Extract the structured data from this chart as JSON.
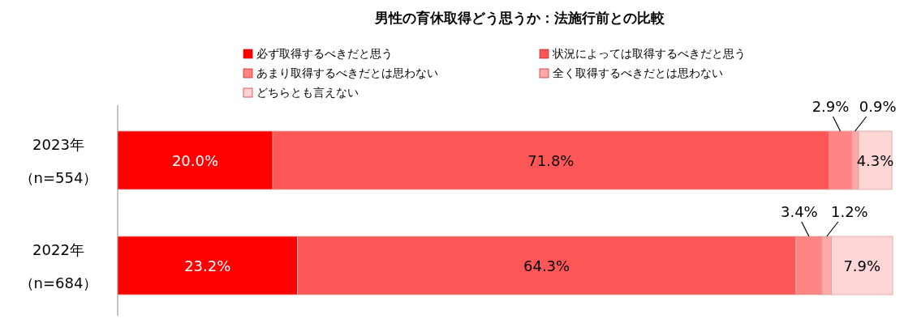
{
  "chart_data": {
    "type": "bar",
    "orientation": "horizontal",
    "stacked": true,
    "title": "男性の育休取得どう思うか：法施行前との比較",
    "categories": [
      "2023年（n=554）",
      "2022年（n=684）"
    ],
    "legend": "top",
    "series": [
      {
        "name": "必ず取得するべきだと思う",
        "color": "#ff0000",
        "values": [
          20.0,
          23.2
        ],
        "value_labels": [
          "20.0%",
          "23.2%"
        ]
      },
      {
        "name": "状況によっては取得するべきだと思う",
        "color": "#ff5757",
        "values": [
          71.8,
          64.3
        ],
        "value_labels": [
          "71.8%",
          "64.3%"
        ]
      },
      {
        "name": "あまり取得するべきだとは思わない",
        "color": "#ff8585",
        "values": [
          2.9,
          3.4
        ],
        "value_labels": [
          "2.9%",
          "3.4%"
        ]
      },
      {
        "name": "全く取得するべきだとは思わない",
        "color": "#ffa8a8",
        "values": [
          0.9,
          1.2
        ],
        "value_labels": [
          "0.9%",
          "1.2%"
        ]
      },
      {
        "name": "どちらとも言えない",
        "color": "#ffd6d6",
        "values": [
          4.3,
          7.9
        ],
        "value_labels": [
          "4.3%",
          "7.9%"
        ]
      }
    ]
  }
}
